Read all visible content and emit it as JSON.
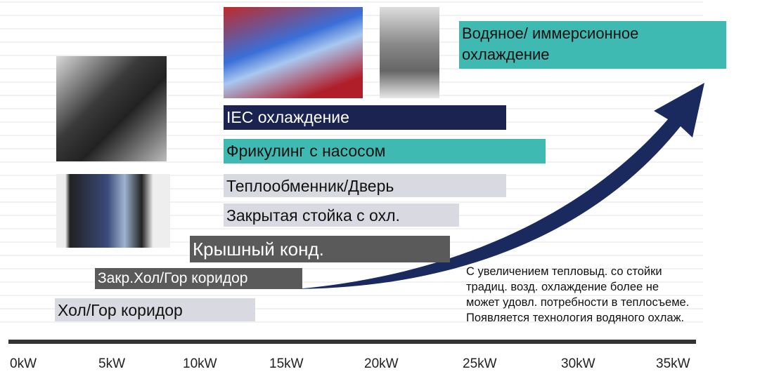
{
  "technologies": [
    {
      "label": "Водяное/ иммерсионное охлаждение"
    },
    {
      "label": "IEC охлаждение"
    },
    {
      "label": "Фрикулинг с насосом"
    },
    {
      "label": "Теплообменник/Дверь"
    },
    {
      "label": "Закрытая стойка с охл."
    },
    {
      "label": "Крышный конд."
    },
    {
      "label": "Закр.Хол/Гор коридор"
    },
    {
      "label": "Хол/Гор коридор"
    }
  ],
  "note": [
    "С увеличением тепловыд. со стойки",
    "традиц. возд. охлаждение более не",
    "может удовл. потребности в теплосъеме.",
    "Появляется технология водяного охлаж."
  ],
  "axis": {
    "labels": [
      "0kW",
      "5kW",
      "10kW",
      "15kW",
      "20kW",
      "25kW",
      "30kW",
      "35kW"
    ]
  }
}
